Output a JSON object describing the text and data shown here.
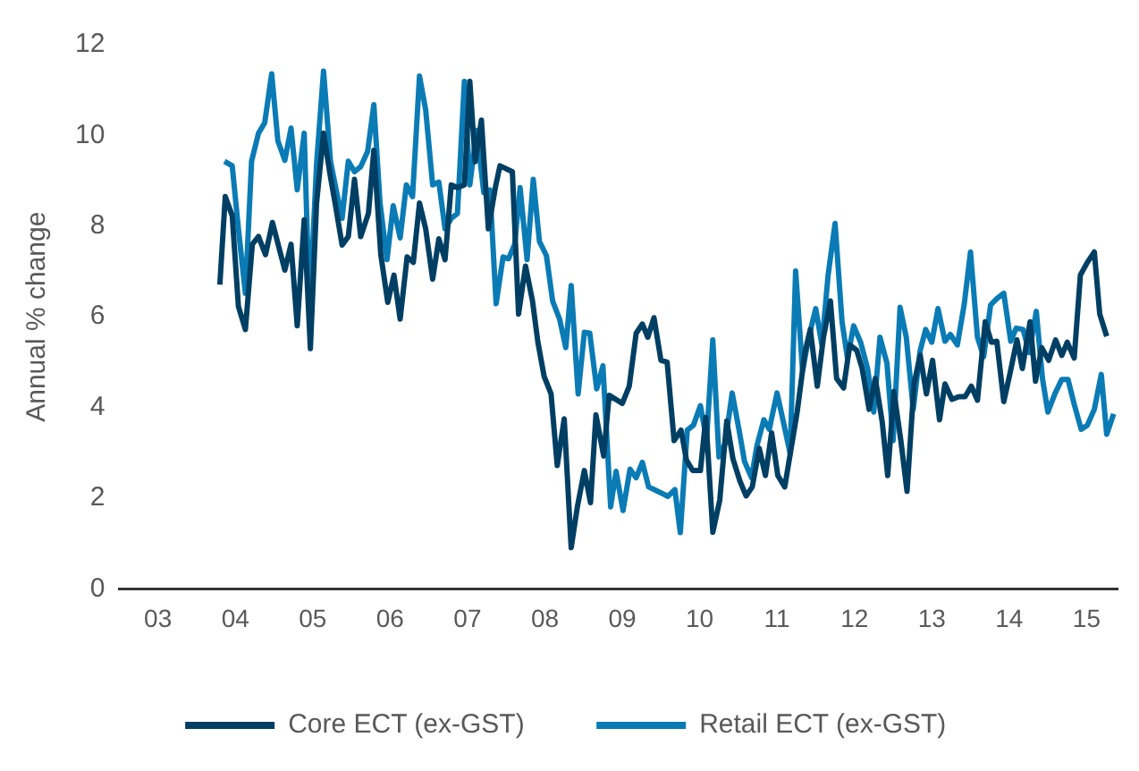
{
  "chart_data": {
    "type": "line",
    "ylabel": "Annual % change",
    "legend": "bottom",
    "marker": "none",
    "line_style": "solid",
    "xlim": [
      2002.5,
      2015.4
    ],
    "xticks": [
      {
        "value": 2003,
        "label": "03"
      },
      {
        "value": 2004,
        "label": "04"
      },
      {
        "value": 2005,
        "label": "05"
      },
      {
        "value": 2006,
        "label": "06"
      },
      {
        "value": 2007,
        "label": "07"
      },
      {
        "value": 2008,
        "label": "08"
      },
      {
        "value": 2009,
        "label": "09"
      },
      {
        "value": 2010,
        "label": "10"
      },
      {
        "value": 2011,
        "label": "11"
      },
      {
        "value": 2012,
        "label": "12"
      },
      {
        "value": 2013,
        "label": "13"
      },
      {
        "value": 2014,
        "label": "14"
      },
      {
        "value": 2015,
        "label": "15"
      }
    ],
    "ylim": [
      0,
      12
    ],
    "yticks": [
      0,
      2,
      4,
      6,
      8,
      10,
      12
    ],
    "series": [
      {
        "name": "Core ECT (ex-GST)",
        "color": "#003f63",
        "x": [
          2003.8,
          2003.87,
          2003.96,
          2004.04,
          2004.13,
          2004.22,
          2004.3,
          2004.39,
          2004.48,
          2004.56,
          2004.64,
          2004.72,
          2004.8,
          2004.89,
          2004.97,
          2005.05,
          2005.14,
          2005.23,
          2005.3,
          2005.38,
          2005.46,
          2005.54,
          2005.62,
          2005.72,
          2005.79,
          2005.88,
          2005.97,
          2006.05,
          2006.13,
          2006.22,
          2006.3,
          2006.38,
          2006.46,
          2006.55,
          2006.63,
          2006.71,
          2006.79,
          2006.87,
          2006.96,
          2007.03,
          2007.1,
          2007.18,
          2007.27,
          2007.36,
          2007.42,
          2007.58,
          2007.66,
          2007.75,
          2007.84,
          2007.91,
          2007.99,
          2008.08,
          2008.16,
          2008.25,
          2008.34,
          2008.42,
          2008.51,
          2008.59,
          2008.66,
          2008.76,
          2008.83,
          2009.0,
          2009.09,
          2009.18,
          2009.26,
          2009.33,
          2009.41,
          2009.5,
          2009.58,
          2009.67,
          2009.76,
          2009.83,
          2009.91,
          2010.01,
          2010.08,
          2010.17,
          2010.26,
          2010.35,
          2010.43,
          2010.52,
          2010.6,
          2010.68,
          2010.77,
          2010.85,
          2010.93,
          2011.01,
          2011.1,
          2011.26,
          2011.36,
          2011.43,
          2011.52,
          2011.6,
          2011.69,
          2011.77,
          2011.86,
          2011.94,
          2012.03,
          2012.1,
          2012.19,
          2012.27,
          2012.36,
          2012.43,
          2012.51,
          2012.6,
          2012.68,
          2012.77,
          2012.85,
          2012.93,
          2013.01,
          2013.1,
          2013.17,
          2013.26,
          2013.35,
          2013.43,
          2013.51,
          2013.59,
          2013.69,
          2013.77,
          2013.84,
          2013.93,
          2014.01,
          2014.1,
          2014.17,
          2014.27,
          2014.34,
          2014.42,
          2014.51,
          2014.6,
          2014.68,
          2014.75,
          2014.84,
          2014.92,
          2015.01,
          2015.1,
          2015.17,
          2015.26
        ],
        "values": [
          6.71,
          8.65,
          8.23,
          6.23,
          5.72,
          7.6,
          7.77,
          7.37,
          8.08,
          7.55,
          7.03,
          7.6,
          5.8,
          8.14,
          5.3,
          8.51,
          10.05,
          9.08,
          8.4,
          7.58,
          7.77,
          9.03,
          7.77,
          8.28,
          9.67,
          7.37,
          6.32,
          6.92,
          5.95,
          7.32,
          7.2,
          8.51,
          7.94,
          6.83,
          7.72,
          7.26,
          8.91,
          8.85,
          8.91,
          11.19,
          9.42,
          10.34,
          7.94,
          8.85,
          9.33,
          9.2,
          6.06,
          7.12,
          6.35,
          5.44,
          4.69,
          4.3,
          2.72,
          3.75,
          0.91,
          1.81,
          2.61,
          1.9,
          3.84,
          2.93,
          4.27,
          4.09,
          4.47,
          5.64,
          5.84,
          5.55,
          5.98,
          5.04,
          5.0,
          3.27,
          3.5,
          2.84,
          2.61,
          2.61,
          3.78,
          1.25,
          1.96,
          3.7,
          2.87,
          2.38,
          2.05,
          2.25,
          3.1,
          2.5,
          3.44,
          2.5,
          2.25,
          3.9,
          5.21,
          5.72,
          4.47,
          5.55,
          6.35,
          4.64,
          4.43,
          5.38,
          5.26,
          4.86,
          3.96,
          4.64,
          3.67,
          2.5,
          4.35,
          3.27,
          2.15,
          4.52,
          5.15,
          4.3,
          5.04,
          3.73,
          4.52,
          4.18,
          4.24,
          4.24,
          4.47,
          4.16,
          5.89,
          5.44,
          5.46,
          4.13,
          4.75,
          5.49,
          4.86,
          5.89,
          4.58,
          5.32,
          5.04,
          5.49,
          5.15,
          5.44,
          5.09,
          6.92,
          7.2,
          7.43,
          6.06,
          5.57
        ]
      },
      {
        "name": "Retail ECT (ex-GST)",
        "color": "#0a7bb5",
        "x": [
          2003.86,
          2003.96,
          2004.04,
          2004.13,
          2004.21,
          2004.3,
          2004.38,
          2004.47,
          2004.55,
          2004.64,
          2004.72,
          2004.8,
          2004.89,
          2004.96,
          2005.05,
          2005.14,
          2005.23,
          2005.31,
          2005.38,
          2005.46,
          2005.54,
          2005.62,
          2005.71,
          2005.79,
          2005.87,
          2005.96,
          2006.04,
          2006.13,
          2006.21,
          2006.29,
          2006.38,
          2006.46,
          2006.55,
          2006.63,
          2006.71,
          2006.79,
          2006.87,
          2006.96,
          2007.03,
          2007.12,
          2007.21,
          2007.29,
          2007.37,
          2007.46,
          2007.53,
          2007.61,
          2007.68,
          2007.77,
          2007.85,
          2007.93,
          2008.02,
          2008.1,
          2008.19,
          2008.27,
          2008.34,
          2008.43,
          2008.51,
          2008.58,
          2008.67,
          2008.75,
          2008.85,
          2008.92,
          2009.01,
          2009.1,
          2009.18,
          2009.26,
          2009.34,
          2009.51,
          2009.59,
          2009.68,
          2009.75,
          2009.84,
          2009.92,
          2010.01,
          2010.09,
          2010.17,
          2010.25,
          2010.33,
          2010.42,
          2010.51,
          2010.58,
          2010.67,
          2010.74,
          2010.83,
          2010.9,
          2011.0,
          2011.08,
          2011.17,
          2011.24,
          2011.33,
          2011.41,
          2011.5,
          2011.58,
          2011.66,
          2011.75,
          2011.84,
          2011.91,
          2011.99,
          2012.08,
          2012.17,
          2012.25,
          2012.33,
          2012.42,
          2012.5,
          2012.59,
          2012.67,
          2012.76,
          2012.85,
          2012.92,
          2013.0,
          2013.08,
          2013.17,
          2013.24,
          2013.33,
          2013.42,
          2013.5,
          2013.59,
          2013.67,
          2013.76,
          2013.84,
          2013.93,
          2014.02,
          2014.09,
          2014.18,
          2014.26,
          2014.35,
          2014.43,
          2014.5,
          2014.59,
          2014.68,
          2014.76,
          2014.84,
          2014.93,
          2015.01,
          2015.1,
          2015.19,
          2015.26,
          2015.35
        ],
        "values": [
          9.43,
          9.33,
          7.94,
          6.52,
          9.43,
          10.05,
          10.28,
          11.36,
          9.88,
          9.45,
          10.16,
          8.8,
          10.05,
          6.12,
          9.37,
          11.42,
          9.43,
          8.74,
          8.17,
          9.43,
          9.2,
          9.31,
          9.65,
          10.68,
          8.51,
          7.26,
          8.45,
          7.74,
          8.91,
          8.65,
          11.31,
          10.56,
          8.91,
          8.97,
          7.94,
          8.17,
          8.28,
          11.19,
          8.91,
          10.11,
          8.74,
          8.8,
          6.29,
          7.32,
          7.28,
          7.6,
          8.85,
          7.26,
          9.03,
          7.66,
          7.35,
          6.35,
          5.95,
          5.32,
          6.69,
          4.3,
          5.66,
          5.64,
          4.41,
          4.92,
          1.81,
          2.59,
          1.73,
          2.64,
          2.45,
          2.79,
          2.25,
          2.11,
          2.04,
          2.19,
          1.24,
          3.5,
          3.61,
          4.04,
          3.29,
          5.49,
          2.91,
          3.21,
          4.32,
          3.5,
          2.81,
          2.45,
          3.16,
          3.73,
          3.52,
          4.32,
          3.7,
          2.98,
          7.01,
          4.81,
          5.55,
          6.18,
          5.38,
          6.92,
          8.06,
          5.89,
          5.09,
          5.8,
          5.44,
          4.86,
          3.9,
          5.55,
          4.98,
          3.27,
          6.21,
          5.55,
          3.96,
          5.26,
          5.72,
          5.44,
          6.18,
          5.46,
          5.61,
          5.38,
          6.29,
          7.43,
          5.55,
          5.12,
          6.26,
          6.4,
          6.52,
          5.46,
          5.75,
          5.72,
          5.21,
          6.12,
          4.64,
          3.9,
          4.3,
          4.62,
          4.62,
          4.07,
          3.52,
          3.61,
          3.96,
          4.73,
          3.41,
          3.86
        ]
      }
    ]
  }
}
